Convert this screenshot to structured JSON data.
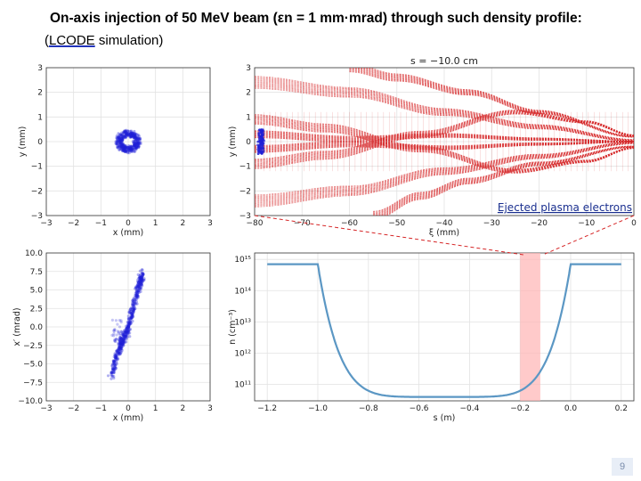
{
  "slide": {
    "title": "On-axis injection of 50 MeV beam (εn = 1 mm·mrad) through such density profile:",
    "subtitle_pre": "(",
    "subtitle_code": "LCODE",
    "subtitle_post": " simulation)",
    "page_number": "9",
    "accent_color": "#d62728",
    "beam_color": "#1f1fd6",
    "profile_color": "#5b97c4"
  },
  "chart_data": [
    {
      "id": "beam-transverse",
      "type": "scatter",
      "xlabel": "x (mm)",
      "ylabel": "y (mm)",
      "xlim": [
        -3,
        3
      ],
      "ylim": [
        -3,
        3
      ],
      "xticks": [
        "−3",
        "−2",
        "−1",
        "0",
        "1",
        "2",
        "3"
      ],
      "yticks": [
        "−3",
        "−2",
        "−1",
        "0",
        "1",
        "2",
        "3"
      ],
      "grid": true,
      "shape": "annulus",
      "center": [
        0,
        0
      ],
      "inner_radius": 0.22,
      "outer_radius": 0.45,
      "color": "#1f1fd6"
    },
    {
      "id": "electron-trajectories",
      "type": "line",
      "title": "s = −10.0 cm",
      "xlabel": "ξ (mm)",
      "ylabel": "y (mm)",
      "xlim": [
        -80,
        0
      ],
      "ylim": [
        -3,
        3
      ],
      "xticks": [
        "−80",
        "−70",
        "−60",
        "−50",
        "−40",
        "−30",
        "−20",
        "−10",
        "0"
      ],
      "yticks": [
        "−3",
        "−2",
        "−1",
        "0",
        "1",
        "2",
        "3"
      ],
      "grid": true,
      "annotation": "Ejected plasma electrons",
      "color": "#d62728",
      "beam": {
        "xi_range": [
          -80,
          -79
        ],
        "y_range": [
          -0.5,
          0.5
        ],
        "color": "#1f1fd6"
      },
      "trajectory_bands": [
        {
          "points": [
            [
              -80,
              0.9
            ],
            [
              -65,
              0.55
            ],
            [
              -45,
              -0.3
            ],
            [
              -25,
              -1.2
            ],
            [
              -10,
              -0.8
            ],
            [
              0,
              -0.25
            ]
          ],
          "spread": 0.4
        },
        {
          "points": [
            [
              -80,
              -0.9
            ],
            [
              -65,
              -0.55
            ],
            [
              -45,
              0.3
            ],
            [
              -25,
              1.2
            ],
            [
              -10,
              0.8
            ],
            [
              0,
              0.25
            ]
          ],
          "spread": 0.4
        },
        {
          "points": [
            [
              -80,
              2.4
            ],
            [
              -60,
              2.0
            ],
            [
              -40,
              1.2
            ],
            [
              -20,
              0.6
            ],
            [
              0,
              0.05
            ]
          ],
          "spread": 0.5
        },
        {
          "points": [
            [
              -80,
              -2.4
            ],
            [
              -60,
              -2.0
            ],
            [
              -40,
              -1.2
            ],
            [
              -20,
              -0.6
            ],
            [
              0,
              -0.05
            ]
          ],
          "spread": 0.5
        },
        {
          "points": [
            [
              -80,
              0.3
            ],
            [
              -60,
              0.1
            ],
            [
              -40,
              0.25
            ],
            [
              -20,
              0.1
            ],
            [
              0,
              0.0
            ]
          ],
          "spread": 0.3
        },
        {
          "points": [
            [
              -80,
              -0.3
            ],
            [
              -60,
              -0.1
            ],
            [
              -40,
              -0.25
            ],
            [
              -20,
              -0.1
            ],
            [
              0,
              0.0
            ]
          ],
          "spread": 0.3
        },
        {
          "points": [
            [
              -55,
              -3.0
            ],
            [
              -45,
              -2.2
            ],
            [
              -35,
              -1.6
            ],
            [
              -20,
              -0.9
            ],
            [
              0,
              -0.2
            ]
          ],
          "spread": 0.35
        },
        {
          "points": [
            [
              -60,
              3.0
            ],
            [
              -50,
              2.6
            ],
            [
              -35,
              2.0
            ],
            [
              -20,
              1.2
            ],
            [
              0,
              0.2
            ]
          ],
          "spread": 0.35
        }
      ]
    },
    {
      "id": "beam-phase-space",
      "type": "scatter",
      "xlabel": "x (mm)",
      "ylabel": "x′ (mrad)",
      "xlim": [
        -3,
        3
      ],
      "ylim": [
        -10,
        10
      ],
      "xticks": [
        "−3",
        "−2",
        "−1",
        "0",
        "1",
        "2",
        "3"
      ],
      "yticks": [
        "−10.0",
        "−7.5",
        "−5.0",
        "−2.5",
        "0.0",
        "2.5",
        "5.0",
        "7.5",
        "10.0"
      ],
      "grid": true,
      "shape": "tilted-ellipse",
      "x_range": [
        -0.6,
        0.55
      ],
      "xp_range": [
        -6.5,
        6.8
      ],
      "color": "#1f1fd6"
    },
    {
      "id": "density-profile",
      "type": "line",
      "xlabel": "s (m)",
      "ylabel": "n (cm⁻³)",
      "xlim": [
        -1.25,
        0.25
      ],
      "ylog": true,
      "ylim": [
        30000000000.0,
        1600000000000000.0
      ],
      "xticks": [
        "−1.2",
        "−1.0",
        "−0.8",
        "−0.6",
        "−0.4",
        "−0.2",
        "0.0",
        "0.2"
      ],
      "yticks": [
        "10¹¹",
        "10¹²",
        "10¹³",
        "10¹⁴",
        "10¹⁵"
      ],
      "grid": true,
      "plateau_density": 700000000000000.0,
      "min_density": 40000000000.0,
      "min_position": -0.5,
      "ramp_start": -1.0,
      "ramp_end": 0.0,
      "x_start": -1.2,
      "x_end": 0.2,
      "highlight_band": [
        -0.2,
        -0.12
      ],
      "color": "#5b97c4",
      "highlight_color": "#ffb3b3"
    }
  ]
}
